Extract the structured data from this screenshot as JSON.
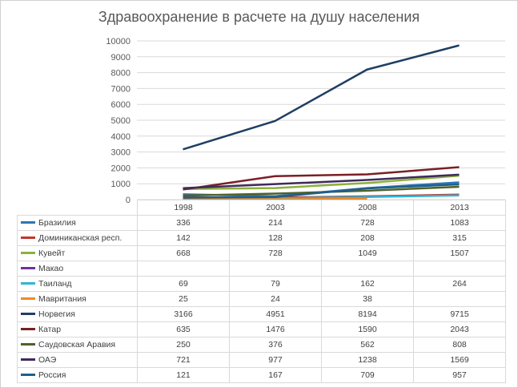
{
  "chart_data": {
    "type": "line",
    "title": "Здравоохранение в расчете на душу населения",
    "x": [
      "1998",
      "2003",
      "2008",
      "2013"
    ],
    "ylim": [
      0,
      10000
    ],
    "yticks": [
      "0",
      "1000",
      "2000",
      "3000",
      "4000",
      "5000",
      "6000",
      "7000",
      "8000",
      "9000",
      "10000"
    ],
    "grid": true,
    "legend": "data-table",
    "series": [
      {
        "name": "Бразилия",
        "color": "#2e75b6",
        "values": [
          336,
          214,
          728,
          1083
        ],
        "labels": [
          "336",
          "214",
          "728",
          "1083"
        ]
      },
      {
        "name": "Доминиканская респ.",
        "color": "#c0392b",
        "values": [
          142,
          128,
          208,
          315
        ],
        "labels": [
          "142",
          "128",
          "208",
          "315"
        ]
      },
      {
        "name": "Кувейт",
        "color": "#8db13c",
        "values": [
          668,
          728,
          1049,
          1507
        ],
        "labels": [
          "668",
          "728",
          "1049",
          "1507"
        ]
      },
      {
        "name": "Макао",
        "color": "#7030a0",
        "values": [
          null,
          null,
          null,
          null
        ],
        "labels": [
          "",
          "",
          "",
          ""
        ]
      },
      {
        "name": "Таиланд",
        "color": "#31b4d8",
        "values": [
          69,
          79,
          162,
          264
        ],
        "labels": [
          "69",
          "79",
          "162",
          "264"
        ]
      },
      {
        "name": "Мавритания",
        "color": "#f08a24",
        "values": [
          25,
          24,
          38,
          null
        ],
        "labels": [
          "25",
          "24",
          "38",
          ""
        ]
      },
      {
        "name": "Норвегия",
        "color": "#1f3f63",
        "values": [
          3166,
          4951,
          8194,
          9715
        ],
        "labels": [
          "3166",
          "4951",
          "8194",
          "9715"
        ]
      },
      {
        "name": "Катар",
        "color": "#7b1f25",
        "values": [
          635,
          1476,
          1590,
          2043
        ],
        "labels": [
          "635",
          "1476",
          "1590",
          "2043"
        ]
      },
      {
        "name": "Саудовская Аравия",
        "color": "#4f6228",
        "values": [
          250,
          376,
          562,
          808
        ],
        "labels": [
          "250",
          "376",
          "562",
          "808"
        ]
      },
      {
        "name": "ОАЭ",
        "color": "#3f2b5b",
        "values": [
          721,
          977,
          1238,
          1569
        ],
        "labels": [
          "721",
          "977",
          "1238",
          "1569"
        ]
      },
      {
        "name": "Россия",
        "color": "#1f5f8b",
        "values": [
          121,
          167,
          709,
          957
        ],
        "labels": [
          "121",
          "167",
          "709",
          "957"
        ]
      }
    ]
  }
}
